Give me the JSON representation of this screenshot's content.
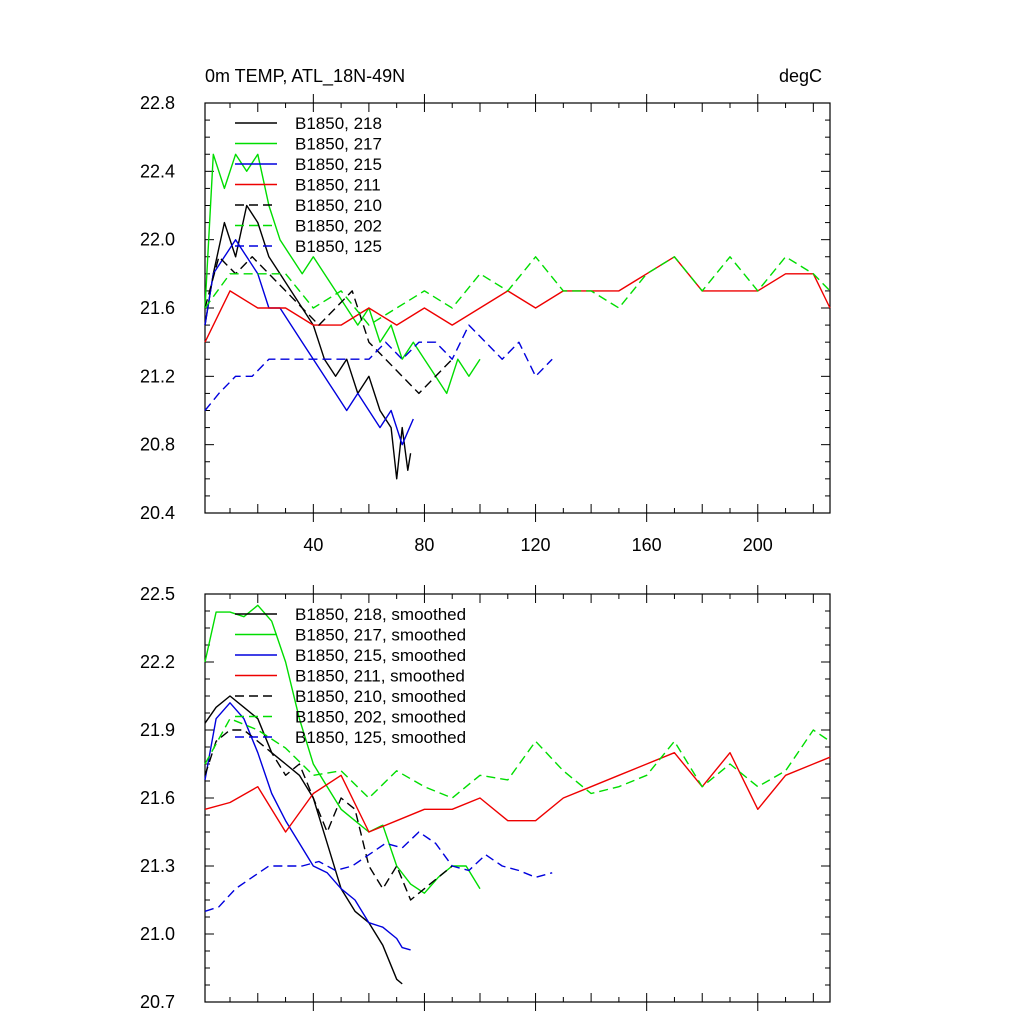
{
  "chart_data": [
    {
      "type": "line",
      "title": "0m TEMP, ATL_18N-49N",
      "units": "degC",
      "xlim": [
        1,
        226
      ],
      "ylim": [
        20.4,
        22.8
      ],
      "xticks": [
        40,
        80,
        120,
        160,
        200
      ],
      "xtick_labels": [
        "40",
        "80",
        "120",
        "160",
        "200"
      ],
      "yticks": [
        20.4,
        20.8,
        21.2,
        21.6,
        22.0,
        22.4,
        22.8
      ],
      "ytick_labels": [
        "20.4",
        "20.8",
        "21.2",
        "21.6",
        "22.0",
        "22.4",
        "22.8"
      ],
      "legend": [
        "B1850, 218",
        "B1850, 217",
        "B1850, 215",
        "B1850, 211",
        "B1850, 210",
        "B1850, 202",
        "B1850, 125"
      ],
      "series": [
        {
          "name": "B1850, 218",
          "color": "#000000",
          "dash": "solid",
          "x": [
            1,
            4,
            8,
            12,
            16,
            20,
            24,
            28,
            32,
            36,
            40,
            44,
            48,
            52,
            56,
            60,
            64,
            68,
            70,
            72,
            74,
            75
          ],
          "y": [
            21.5,
            21.8,
            22.1,
            21.9,
            22.2,
            22.1,
            21.9,
            21.8,
            21.7,
            21.6,
            21.5,
            21.3,
            21.2,
            21.3,
            21.1,
            21.2,
            21.0,
            20.9,
            20.6,
            20.9,
            20.65,
            20.75
          ]
        },
        {
          "name": "B1850, 217",
          "color": "#00dd00",
          "dash": "solid",
          "x": [
            1,
            4,
            8,
            12,
            16,
            20,
            24,
            28,
            32,
            36,
            40,
            44,
            48,
            52,
            56,
            60,
            64,
            68,
            72,
            76,
            80,
            84,
            88,
            92,
            96,
            100
          ],
          "y": [
            21.6,
            22.5,
            22.3,
            22.5,
            22.4,
            22.5,
            22.2,
            22.0,
            21.9,
            21.8,
            21.9,
            21.8,
            21.7,
            21.6,
            21.5,
            21.6,
            21.4,
            21.5,
            21.3,
            21.4,
            21.3,
            21.2,
            21.1,
            21.3,
            21.2,
            21.3
          ]
        },
        {
          "name": "B1850, 215",
          "color": "#0000dd",
          "dash": "solid",
          "x": [
            1,
            4,
            8,
            12,
            16,
            20,
            24,
            28,
            32,
            36,
            40,
            44,
            48,
            52,
            56,
            60,
            64,
            68,
            72,
            76
          ],
          "y": [
            21.5,
            21.8,
            21.9,
            22.0,
            21.9,
            21.8,
            21.6,
            21.6,
            21.5,
            21.4,
            21.3,
            21.2,
            21.1,
            21.0,
            21.1,
            21.0,
            20.9,
            21.0,
            20.8,
            20.95
          ]
        },
        {
          "name": "B1850, 211",
          "color": "#ee0000",
          "dash": "solid",
          "x": [
            1,
            10,
            20,
            30,
            40,
            50,
            60,
            70,
            80,
            90,
            100,
            110,
            120,
            130,
            140,
            150,
            160,
            170,
            180,
            190,
            200,
            210,
            220,
            226
          ],
          "y": [
            21.4,
            21.7,
            21.6,
            21.6,
            21.5,
            21.5,
            21.6,
            21.5,
            21.6,
            21.5,
            21.6,
            21.7,
            21.6,
            21.7,
            21.7,
            21.7,
            21.8,
            21.9,
            21.7,
            21.7,
            21.7,
            21.8,
            21.8,
            21.6
          ]
        },
        {
          "name": "B1850, 210",
          "color": "#000000",
          "dash": "dash",
          "x": [
            1,
            6,
            12,
            18,
            24,
            30,
            36,
            42,
            48,
            54,
            60,
            66,
            72,
            78,
            84,
            90
          ],
          "y": [
            21.6,
            21.9,
            21.8,
            21.9,
            21.8,
            21.7,
            21.6,
            21.5,
            21.6,
            21.7,
            21.4,
            21.3,
            21.2,
            21.1,
            21.2,
            21.3
          ]
        },
        {
          "name": "B1850, 202",
          "color": "#00dd00",
          "dash": "dash",
          "x": [
            1,
            10,
            20,
            30,
            40,
            50,
            60,
            70,
            80,
            90,
            100,
            110,
            120,
            130,
            140,
            150,
            160,
            170,
            180,
            190,
            200,
            210,
            220,
            226
          ],
          "y": [
            21.6,
            21.8,
            21.8,
            21.8,
            21.6,
            21.7,
            21.5,
            21.6,
            21.7,
            21.6,
            21.8,
            21.7,
            21.9,
            21.7,
            21.7,
            21.6,
            21.8,
            21.9,
            21.7,
            21.9,
            21.7,
            21.9,
            21.8,
            21.7
          ]
        },
        {
          "name": "B1850, 125",
          "color": "#0000dd",
          "dash": "dash",
          "x": [
            1,
            6,
            12,
            18,
            24,
            30,
            36,
            42,
            48,
            54,
            60,
            66,
            72,
            78,
            84,
            90,
            96,
            102,
            108,
            114,
            120,
            126
          ],
          "y": [
            21.0,
            21.1,
            21.2,
            21.2,
            21.3,
            21.3,
            21.3,
            21.3,
            21.3,
            21.3,
            21.3,
            21.4,
            21.3,
            21.4,
            21.4,
            21.3,
            21.5,
            21.4,
            21.3,
            21.4,
            21.2,
            21.3
          ]
        }
      ]
    },
    {
      "type": "line",
      "title": "",
      "xlim": [
        1,
        226
      ],
      "ylim": [
        20.7,
        22.5
      ],
      "xticks": [
        40,
        80,
        120,
        160,
        200
      ],
      "yticks": [
        20.7,
        21.0,
        21.3,
        21.6,
        21.9,
        22.2,
        22.5
      ],
      "ytick_labels": [
        "20.7",
        "21.0",
        "21.3",
        "21.6",
        "21.9",
        "22.2",
        "22.5"
      ],
      "legend": [
        "B1850, 218, smoothed",
        "B1850, 217, smoothed",
        "B1850, 215, smoothed",
        "B1850, 211, smoothed",
        "B1850, 210, smoothed",
        "B1850, 202, smoothed",
        "B1850, 125, smoothed"
      ],
      "series": [
        {
          "name": "B1850, 218, smoothed",
          "color": "#000000",
          "dash": "solid",
          "x": [
            1,
            5,
            10,
            15,
            20,
            25,
            30,
            35,
            40,
            45,
            50,
            55,
            60,
            65,
            70,
            72
          ],
          "y": [
            21.93,
            22.0,
            22.05,
            22.0,
            21.95,
            21.8,
            21.75,
            21.7,
            21.6,
            21.4,
            21.2,
            21.1,
            21.05,
            20.95,
            20.8,
            20.78
          ]
        },
        {
          "name": "B1850, 217, smoothed",
          "color": "#00dd00",
          "dash": "solid",
          "x": [
            1,
            5,
            10,
            15,
            20,
            25,
            30,
            35,
            40,
            45,
            50,
            55,
            60,
            65,
            70,
            75,
            80,
            85,
            90,
            95,
            100
          ],
          "y": [
            22.2,
            22.42,
            22.42,
            22.4,
            22.45,
            22.38,
            22.2,
            21.95,
            21.75,
            21.65,
            21.55,
            21.5,
            21.45,
            21.48,
            21.3,
            21.22,
            21.18,
            21.25,
            21.3,
            21.3,
            21.2
          ]
        },
        {
          "name": "B1850, 215, smoothed",
          "color": "#0000dd",
          "dash": "solid",
          "x": [
            1,
            5,
            10,
            15,
            20,
            25,
            30,
            35,
            40,
            45,
            50,
            55,
            60,
            65,
            70,
            72,
            75
          ],
          "y": [
            21.68,
            21.95,
            22.02,
            21.95,
            21.8,
            21.62,
            21.5,
            21.4,
            21.3,
            21.27,
            21.2,
            21.15,
            21.05,
            21.03,
            20.98,
            20.94,
            20.93
          ]
        },
        {
          "name": "B1850, 211, smoothed",
          "color": "#ee0000",
          "dash": "solid",
          "x": [
            1,
            10,
            20,
            30,
            40,
            50,
            60,
            70,
            80,
            90,
            100,
            110,
            120,
            130,
            140,
            150,
            160,
            170,
            180,
            190,
            200,
            210,
            220,
            226
          ],
          "y": [
            21.55,
            21.58,
            21.65,
            21.45,
            21.62,
            21.7,
            21.45,
            21.5,
            21.55,
            21.55,
            21.6,
            21.5,
            21.5,
            21.6,
            21.65,
            21.7,
            21.75,
            21.8,
            21.65,
            21.8,
            21.55,
            21.7,
            21.75,
            21.78
          ]
        },
        {
          "name": "B1850, 210, smoothed",
          "color": "#000000",
          "dash": "dash",
          "x": [
            1,
            5,
            10,
            15,
            20,
            25,
            30,
            35,
            40,
            45,
            50,
            55,
            60,
            65,
            70,
            75,
            80,
            85,
            90
          ],
          "y": [
            21.7,
            21.85,
            21.9,
            21.9,
            21.85,
            21.8,
            21.7,
            21.75,
            21.6,
            21.45,
            21.6,
            21.55,
            21.3,
            21.2,
            21.3,
            21.15,
            21.2,
            21.25,
            21.3
          ]
        },
        {
          "name": "B1850, 202, smoothed",
          "color": "#00dd00",
          "dash": "dash",
          "x": [
            1,
            10,
            20,
            30,
            40,
            50,
            60,
            70,
            80,
            90,
            100,
            110,
            120,
            130,
            140,
            150,
            160,
            170,
            180,
            190,
            200,
            210,
            220,
            226
          ],
          "y": [
            21.75,
            21.95,
            21.9,
            21.82,
            21.7,
            21.72,
            21.6,
            21.72,
            21.65,
            21.6,
            21.7,
            21.68,
            21.85,
            21.72,
            21.62,
            21.65,
            21.7,
            21.85,
            21.65,
            21.75,
            21.65,
            21.72,
            21.9,
            21.85
          ]
        },
        {
          "name": "B1850, 125, smoothed",
          "color": "#0000dd",
          "dash": "dash",
          "x": [
            1,
            6,
            12,
            18,
            24,
            30,
            36,
            42,
            48,
            54,
            60,
            66,
            72,
            78,
            84,
            90,
            96,
            102,
            108,
            114,
            120,
            126
          ],
          "y": [
            21.1,
            21.12,
            21.2,
            21.25,
            21.3,
            21.3,
            21.3,
            21.32,
            21.28,
            21.3,
            21.35,
            21.4,
            21.38,
            21.45,
            21.4,
            21.3,
            21.28,
            21.35,
            21.3,
            21.28,
            21.25,
            21.27
          ]
        }
      ]
    }
  ]
}
